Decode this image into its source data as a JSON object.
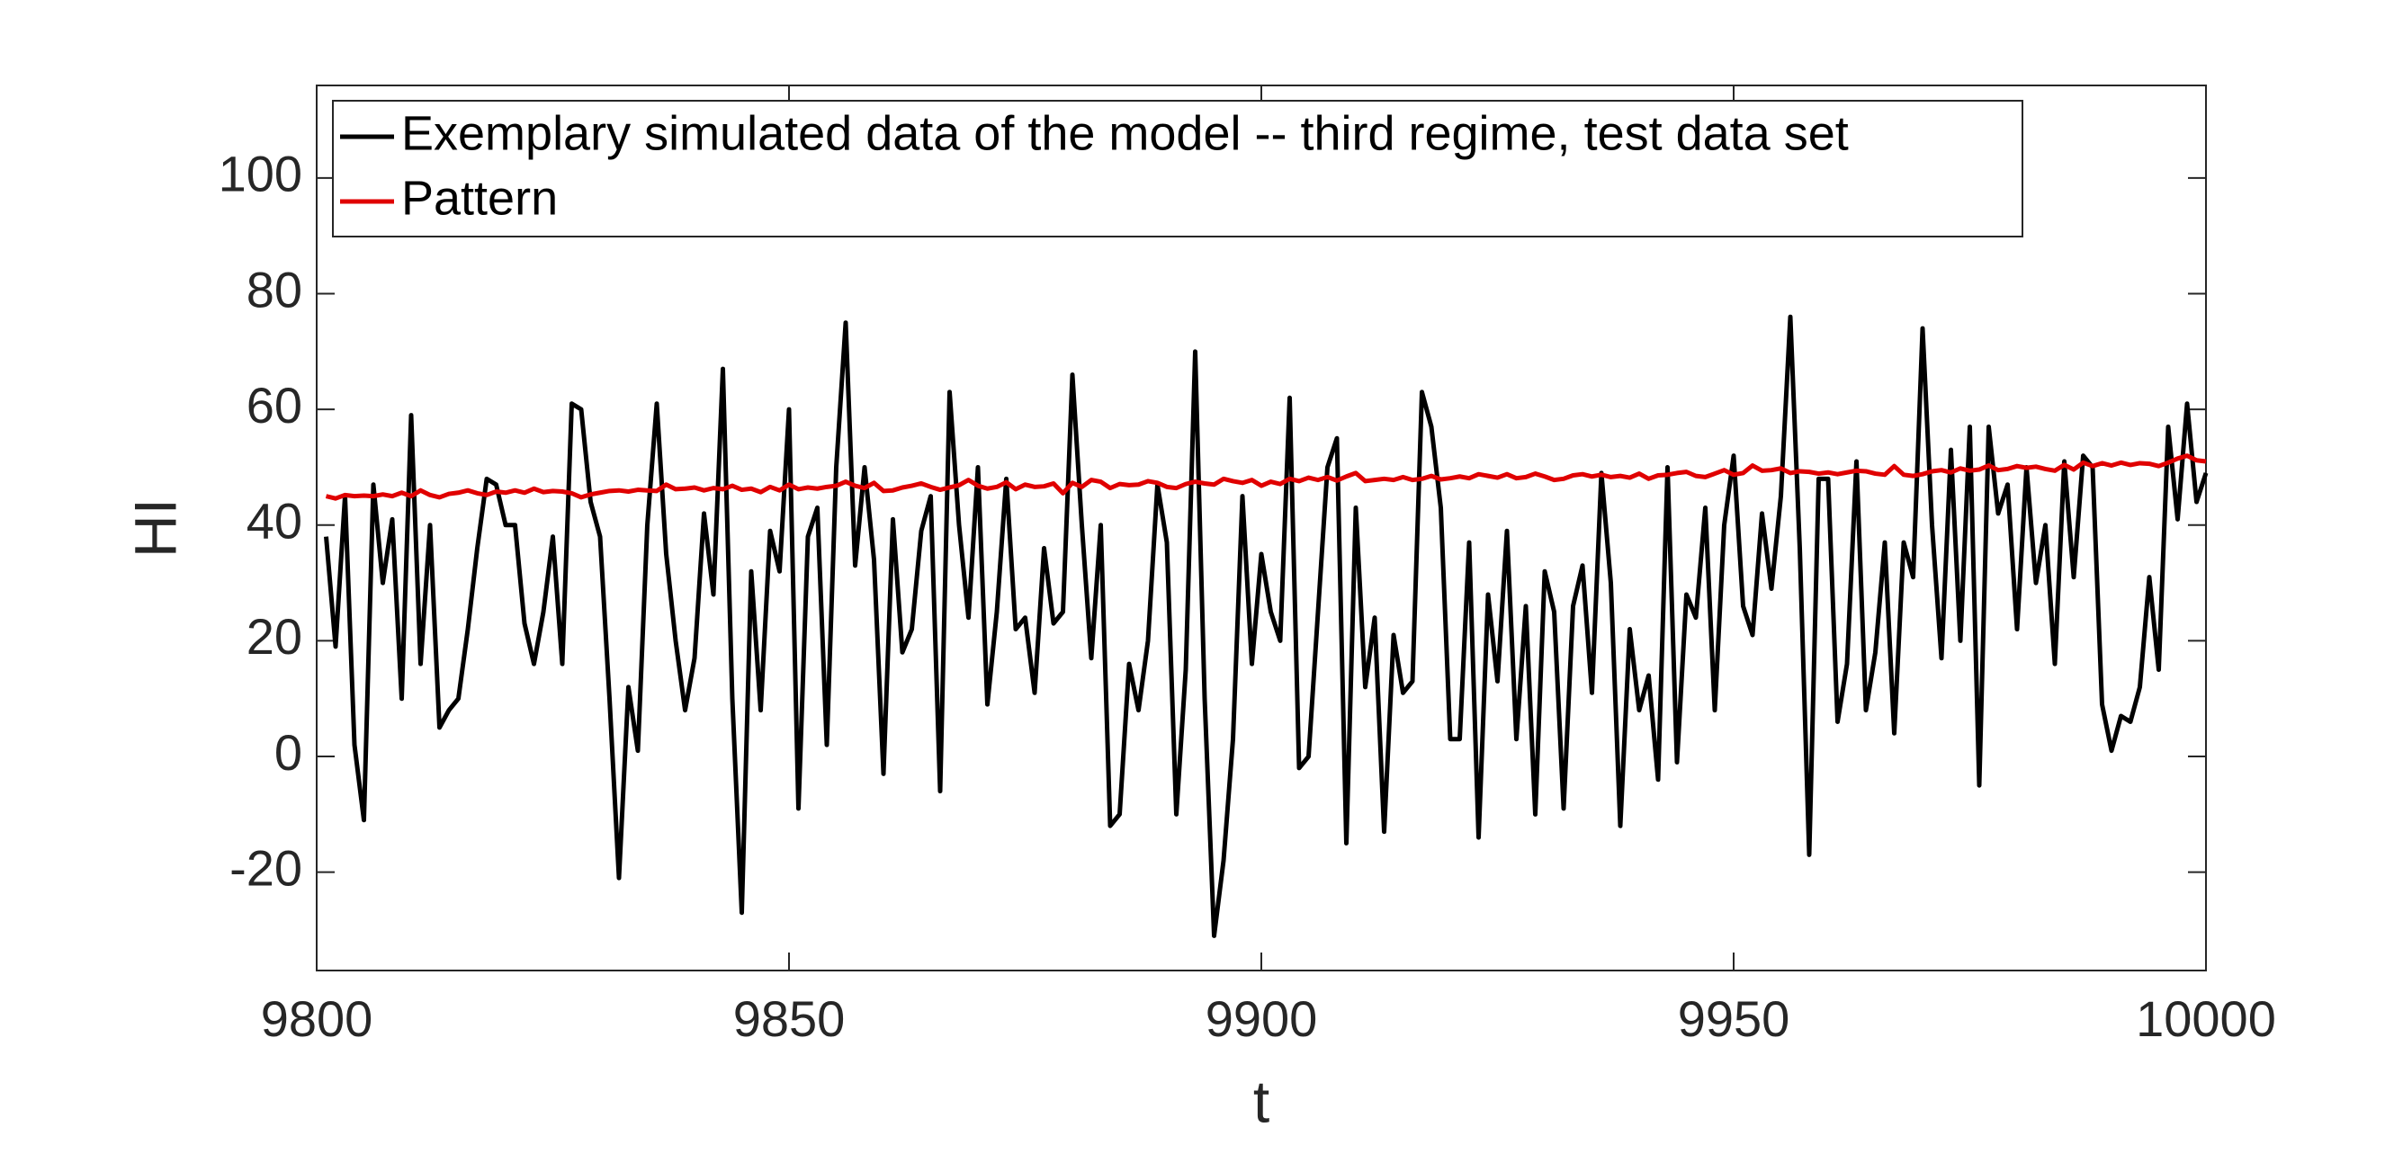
{
  "chart_data": {
    "type": "line",
    "xlabel": "t",
    "ylabel": "HI",
    "xlim": [
      9800,
      10000
    ],
    "xticks": [
      9800,
      9850,
      9900,
      9950,
      10000
    ],
    "ylim": [
      -37,
      116
    ],
    "yticks": [
      -20,
      0,
      20,
      40,
      60,
      80,
      100
    ],
    "grid": false,
    "legend": "top-left",
    "x": [
      9801,
      9802,
      9803,
      9804,
      9805,
      9806,
      9807,
      9808,
      9809,
      9810,
      9811,
      9812,
      9813,
      9814,
      9815,
      9816,
      9817,
      9818,
      9819,
      9820,
      9821,
      9822,
      9823,
      9824,
      9825,
      9826,
      9827,
      9828,
      9829,
      9830,
      9831,
      9832,
      9833,
      9834,
      9835,
      9836,
      9837,
      9838,
      9839,
      9840,
      9841,
      9842,
      9843,
      9844,
      9845,
      9846,
      9847,
      9848,
      9849,
      9850,
      9851,
      9852,
      9853,
      9854,
      9855,
      9856,
      9857,
      9858,
      9859,
      9860,
      9861,
      9862,
      9863,
      9864,
      9865,
      9866,
      9867,
      9868,
      9869,
      9870,
      9871,
      9872,
      9873,
      9874,
      9875,
      9876,
      9877,
      9878,
      9879,
      9880,
      9881,
      9882,
      9883,
      9884,
      9885,
      9886,
      9887,
      9888,
      9889,
      9890,
      9891,
      9892,
      9893,
      9894,
      9895,
      9896,
      9897,
      9898,
      9899,
      9900,
      9901,
      9902,
      9903,
      9904,
      9905,
      9906,
      9907,
      9908,
      9909,
      9910,
      9911,
      9912,
      9913,
      9914,
      9915,
      9916,
      9917,
      9918,
      9919,
      9920,
      9921,
      9922,
      9923,
      9924,
      9925,
      9926,
      9927,
      9928,
      9929,
      9930,
      9931,
      9932,
      9933,
      9934,
      9935,
      9936,
      9937,
      9938,
      9939,
      9940,
      9941,
      9942,
      9943,
      9944,
      9945,
      9946,
      9947,
      9948,
      9949,
      9950,
      9951,
      9952,
      9953,
      9954,
      9955,
      9956,
      9957,
      9958,
      9959,
      9960,
      9961,
      9962,
      9963,
      9964,
      9965,
      9966,
      9967,
      9968,
      9969,
      9970,
      9971,
      9972,
      9973,
      9974,
      9975,
      9976,
      9977,
      9978,
      9979,
      9980,
      9981,
      9982,
      9983,
      9984,
      9985,
      9986,
      9987,
      9988,
      9989,
      9990,
      9991,
      9992,
      9993,
      9994,
      9995,
      9996,
      9997,
      9998,
      9999,
      10000
    ],
    "series": [
      {
        "name": "Exemplary simulated data of the model -- third regime, test data set",
        "color": "#000000",
        "values": [
          38,
          19,
          45,
          2,
          -11,
          47,
          30,
          41,
          10,
          59,
          16,
          40,
          5,
          8,
          10,
          22,
          36,
          48,
          47,
          40,
          40,
          23,
          16,
          25,
          38,
          16,
          61,
          60,
          44,
          38,
          10,
          -21,
          12,
          1,
          40,
          61,
          35,
          20,
          8,
          17,
          42,
          28,
          67,
          10,
          -27,
          32,
          8,
          39,
          32,
          60,
          -9,
          38,
          43,
          2,
          50,
          75,
          33,
          50,
          34,
          -3,
          41,
          18,
          22,
          39,
          45,
          -6,
          63,
          40,
          24,
          50,
          9,
          25,
          48,
          22,
          24,
          11,
          36,
          23,
          25,
          66,
          40,
          17,
          40,
          -12,
          -10,
          16,
          8,
          20,
          47,
          37,
          -10,
          15,
          70,
          10,
          -31,
          -18,
          3,
          45,
          16,
          35,
          25,
          20,
          62,
          -2,
          0,
          25,
          50,
          55,
          -15,
          43,
          12,
          24,
          -13,
          21,
          11,
          13,
          63,
          57,
          43,
          3,
          3,
          37,
          -14,
          28,
          13,
          39,
          3,
          26,
          -10,
          32,
          25,
          -9,
          26,
          33,
          11,
          49,
          30,
          -12,
          22,
          8,
          14,
          -4,
          50,
          -1,
          28,
          24,
          43,
          8,
          40,
          52,
          26,
          21,
          42,
          29,
          45,
          76,
          36,
          -17,
          48,
          48,
          6,
          16,
          51,
          8,
          18,
          37,
          4,
          37,
          31,
          74,
          40,
          17,
          53,
          20,
          57,
          -5,
          57,
          42,
          47,
          22,
          50,
          30,
          40,
          16,
          51,
          31,
          52,
          50,
          9,
          1,
          7,
          6,
          12,
          31,
          15,
          57,
          41,
          61,
          44,
          49
        ]
      },
      {
        "name": "Pattern",
        "color": "#e00000",
        "values": [
          45,
          44.6,
          45.2,
          45,
          45.1,
          45,
          45.3,
          45,
          45.6,
          45,
          46,
          45.2,
          44.8,
          45.4,
          45.6,
          46,
          45.5,
          45.2,
          45.8,
          45.6,
          46,
          45.6,
          46.3,
          45.7,
          45.9,
          45.8,
          45.5,
          44.8,
          45.3,
          45.6,
          45.9,
          46,
          45.8,
          46.1,
          46,
          45.9,
          47,
          46.2,
          46.3,
          46.5,
          46,
          46.4,
          46.2,
          46.8,
          46.1,
          46.3,
          45.7,
          46.6,
          46,
          47,
          46.2,
          46.5,
          46.3,
          46.6,
          46.8,
          47.5,
          46.8,
          46.4,
          47.3,
          45.9,
          46,
          46.5,
          46.8,
          47.2,
          46.6,
          46.1,
          46.5,
          46.9,
          47.8,
          46.8,
          46.3,
          46.6,
          47.4,
          46.2,
          47,
          46.6,
          46.7,
          47.2,
          45.5,
          47.3,
          46.6,
          47.8,
          47.5,
          46.4,
          47.1,
          46.9,
          47,
          47.6,
          47.3,
          46.6,
          46.4,
          47.1,
          47.5,
          47.2,
          47,
          48,
          47.6,
          47.3,
          47.8,
          46.8,
          47.5,
          47.1,
          48,
          47.6,
          48.2,
          47.8,
          48.3,
          47.7,
          48.4,
          49,
          47.6,
          47.8,
          48,
          47.8,
          48.3,
          47.8,
          48,
          48.5,
          47.9,
          48.1,
          48.4,
          48.1,
          48.8,
          48.5,
          48.2,
          48.8,
          48.1,
          48.3,
          48.9,
          48.4,
          47.8,
          48,
          48.6,
          48.8,
          48.4,
          48.7,
          48.3,
          48.5,
          48.2,
          48.9,
          48,
          48.6,
          48.7,
          49,
          49.2,
          48.5,
          48.3,
          48.9,
          49.5,
          48.7,
          49,
          50.3,
          49.4,
          49.5,
          49.8,
          49,
          49.3,
          49.2,
          48.9,
          49.1,
          48.8,
          49.1,
          49.4,
          49.3,
          48.9,
          48.7,
          50.2,
          48.7,
          48.5,
          48.8,
          49.3,
          49.5,
          49.1,
          49.8,
          49.4,
          49.6,
          50.3,
          49.5,
          49.7,
          50.2,
          49.9,
          50.1,
          49.7,
          49.4,
          50.4,
          49.6,
          50.8,
          50.2,
          50.7,
          50.3,
          50.8,
          50.4,
          50.7,
          50.6,
          50.2,
          50.8,
          51.5,
          52,
          51.2,
          51
        ]
      }
    ]
  }
}
